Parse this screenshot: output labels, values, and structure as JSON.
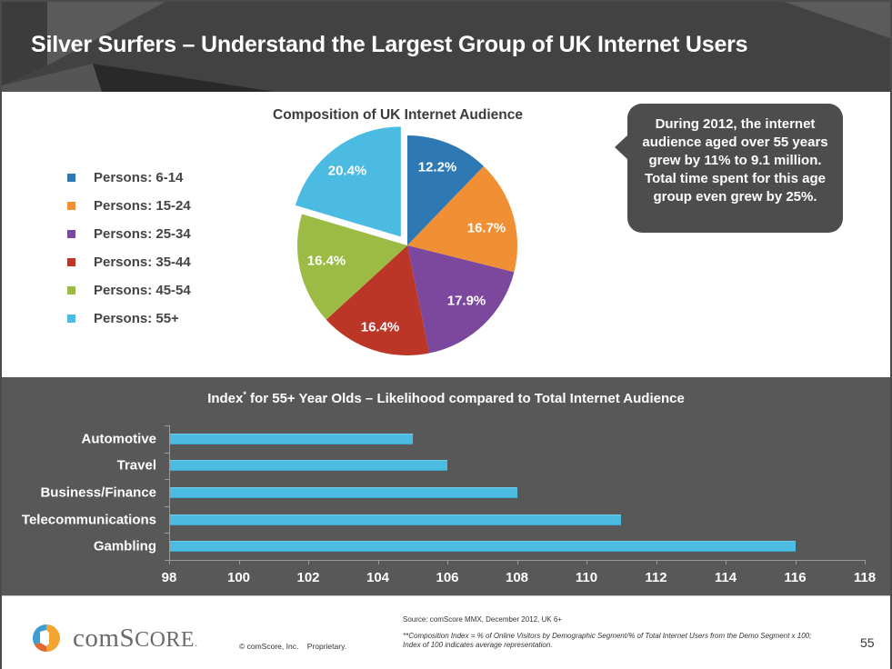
{
  "header": {
    "title": "Silver Surfers – Understand the Largest Group of UK Internet Users"
  },
  "pie": {
    "title": "Composition of UK Internet Audience",
    "legend": [
      {
        "label": "Persons: 6-14",
        "color": "#2e78b4"
      },
      {
        "label": "Persons: 15-24",
        "color": "#f08f33"
      },
      {
        "label": "Persons: 25-34",
        "color": "#7b489d"
      },
      {
        "label": "Persons: 35-44",
        "color": "#bc3627"
      },
      {
        "label": "Persons: 45-54",
        "color": "#9bbb44"
      },
      {
        "label": "Persons: 55+",
        "color": "#4bbbe2"
      }
    ],
    "slice_labels": [
      "12.2%",
      "16.7%",
      "17.9%",
      "16.4%",
      "16.4%",
      "20.4%"
    ]
  },
  "callout": {
    "text": "During 2012, the internet audience aged over 55 years grew by 11% to 9.1 million. Total time spent for this age group even grew by 25%."
  },
  "bar_chart": {
    "title_pre": "Index",
    "title_sup": "*",
    "title_post": " for 55+ Year Olds – Likelihood compared to Total Internet Audience",
    "categories": [
      "Automotive",
      "Travel",
      "Business/Finance",
      "Telecommunications",
      "Gambling"
    ],
    "ticks": [
      "98",
      "100",
      "102",
      "104",
      "106",
      "108",
      "110",
      "112",
      "114",
      "116",
      "118"
    ]
  },
  "footer": {
    "logo_text_big": "com",
    "logo_text_caps": "SCORE",
    "logo_dot": ".",
    "copyright": "© comScore, Inc.    Proprietary.",
    "source": "Source: comScore MMX, December 2012, UK 6+",
    "footnote": "**Composition Index = % of Online Visitors by Demographic Segment/% of Total Internet Users from the Demo Segment x 100; Index of 100 indicates average representation.",
    "page_number": "55"
  },
  "chart_data": [
    {
      "type": "pie",
      "title": "Composition of UK Internet Audience",
      "categories": [
        "Persons: 6-14",
        "Persons: 15-24",
        "Persons: 25-34",
        "Persons: 35-44",
        "Persons: 45-54",
        "Persons: 55+"
      ],
      "values": [
        12.2,
        16.7,
        17.9,
        16.4,
        16.4,
        20.4
      ],
      "colors": [
        "#2e78b4",
        "#f08f33",
        "#7b489d",
        "#bc3627",
        "#9bbb44",
        "#4bbbe2"
      ],
      "exploded": [
        "Persons: 55+"
      ],
      "legend_position": "left"
    },
    {
      "type": "bar",
      "orientation": "horizontal",
      "title": "Index* for 55+ Year Olds – Likelihood compared to Total Internet Audience",
      "categories": [
        "Automotive",
        "Travel",
        "Business/Finance",
        "Telecommunications",
        "Gambling"
      ],
      "values": [
        105,
        106,
        108,
        111,
        116
      ],
      "xlabel": "",
      "ylabel": "",
      "xlim": [
        98,
        118
      ],
      "xticks": [
        98,
        100,
        102,
        104,
        106,
        108,
        110,
        112,
        114,
        116,
        118
      ],
      "grid": false,
      "color": "#4bbbe2"
    }
  ]
}
